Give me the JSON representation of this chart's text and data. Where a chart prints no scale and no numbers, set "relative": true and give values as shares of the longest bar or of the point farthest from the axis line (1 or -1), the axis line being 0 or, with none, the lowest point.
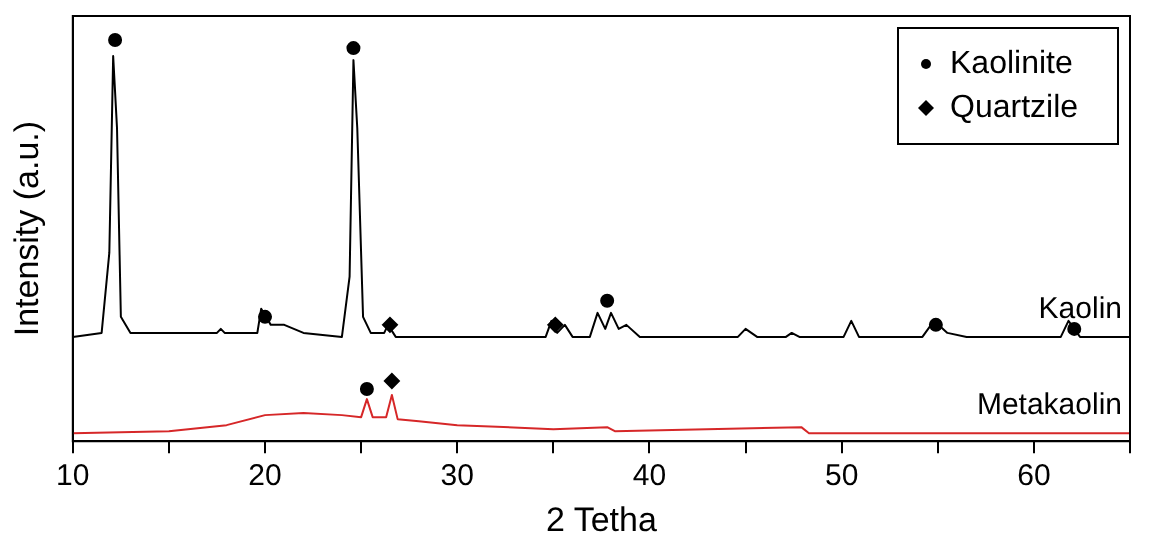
{
  "chart_data": {
    "type": "line",
    "xlabel": "2 Tetha",
    "ylabel": "Intensity (a.u.)",
    "relative": true,
    "xlim": [
      10,
      65
    ],
    "xticks": [
      10,
      {
        "value": 15,
        "label": null
      },
      20,
      {
        "value": 25,
        "label": null
      },
      30,
      {
        "value": 35,
        "label": null
      },
      40,
      {
        "value": 45,
        "label": null
      },
      50,
      {
        "value": 55,
        "label": null
      },
      60,
      {
        "value": 65,
        "label": null
      }
    ],
    "grid": false,
    "legend": "top right",
    "series": [
      {
        "name": "Kaolin",
        "color": "#000000",
        "marker": "none",
        "x": [
          10,
          11.5,
          11.9,
          12.1,
          12.3,
          12.5,
          13,
          17.5,
          17.7,
          17.9,
          19.6,
          19.8,
          20.3,
          21,
          22,
          24,
          24.4,
          24.6,
          24.8,
          25.1,
          25.5,
          26.2,
          26.4,
          26.8,
          34.6,
          34.9,
          35.2,
          35.6,
          36,
          36.9,
          37.3,
          37.7,
          38,
          38.4,
          38.8,
          39.5,
          44.6,
          45,
          45.6,
          47.1,
          47.4,
          47.8,
          50.1,
          50.5,
          50.9,
          54.2,
          54.8,
          55.5,
          56.5,
          61.4,
          61.8,
          62.4,
          65
        ],
        "values": [
          0.26,
          0.27,
          0.47,
          0.96,
          0.78,
          0.31,
          0.27,
          0.27,
          0.28,
          0.27,
          0.27,
          0.33,
          0.29,
          0.29,
          0.27,
          0.26,
          0.41,
          0.95,
          0.78,
          0.31,
          0.27,
          0.27,
          0.29,
          0.26,
          0.26,
          0.3,
          0.27,
          0.29,
          0.26,
          0.26,
          0.32,
          0.28,
          0.32,
          0.28,
          0.29,
          0.26,
          0.26,
          0.28,
          0.26,
          0.26,
          0.27,
          0.26,
          0.26,
          0.3,
          0.26,
          0.26,
          0.3,
          0.27,
          0.26,
          0.26,
          0.3,
          0.26,
          0.26
        ]
      },
      {
        "name": "Metakaolin",
        "color": "#d62728",
        "marker": "none",
        "x": [
          10,
          15,
          18,
          20,
          22,
          24,
          25,
          25.3,
          25.6,
          26.3,
          26.6,
          26.9,
          28,
          30,
          35,
          37.8,
          38.2,
          47.9,
          48.3,
          55,
          65
        ],
        "values": [
          0.02,
          0.025,
          0.04,
          0.065,
          0.07,
          0.065,
          0.06,
          0.105,
          0.06,
          0.06,
          0.115,
          0.055,
          0.05,
          0.04,
          0.03,
          0.035,
          0.025,
          0.035,
          0.02,
          0.02,
          0.02
        ]
      },
      {
        "name": "Kaolinite",
        "type": "scatter",
        "color": "#000000",
        "marker": "circle",
        "x": [
          12.2,
          20,
          24.6,
          37.8,
          54.9,
          62.1,
          25.3
        ],
        "values": [
          1,
          0.31,
          0.98,
          0.35,
          0.29,
          0.28,
          0.13
        ]
      },
      {
        "name": "Quartzile",
        "type": "scatter",
        "color": "#000000",
        "marker": "diamond",
        "x": [
          26.5,
          35.1,
          26.6
        ],
        "values": [
          0.29,
          0.29,
          0.15
        ]
      }
    ]
  }
}
